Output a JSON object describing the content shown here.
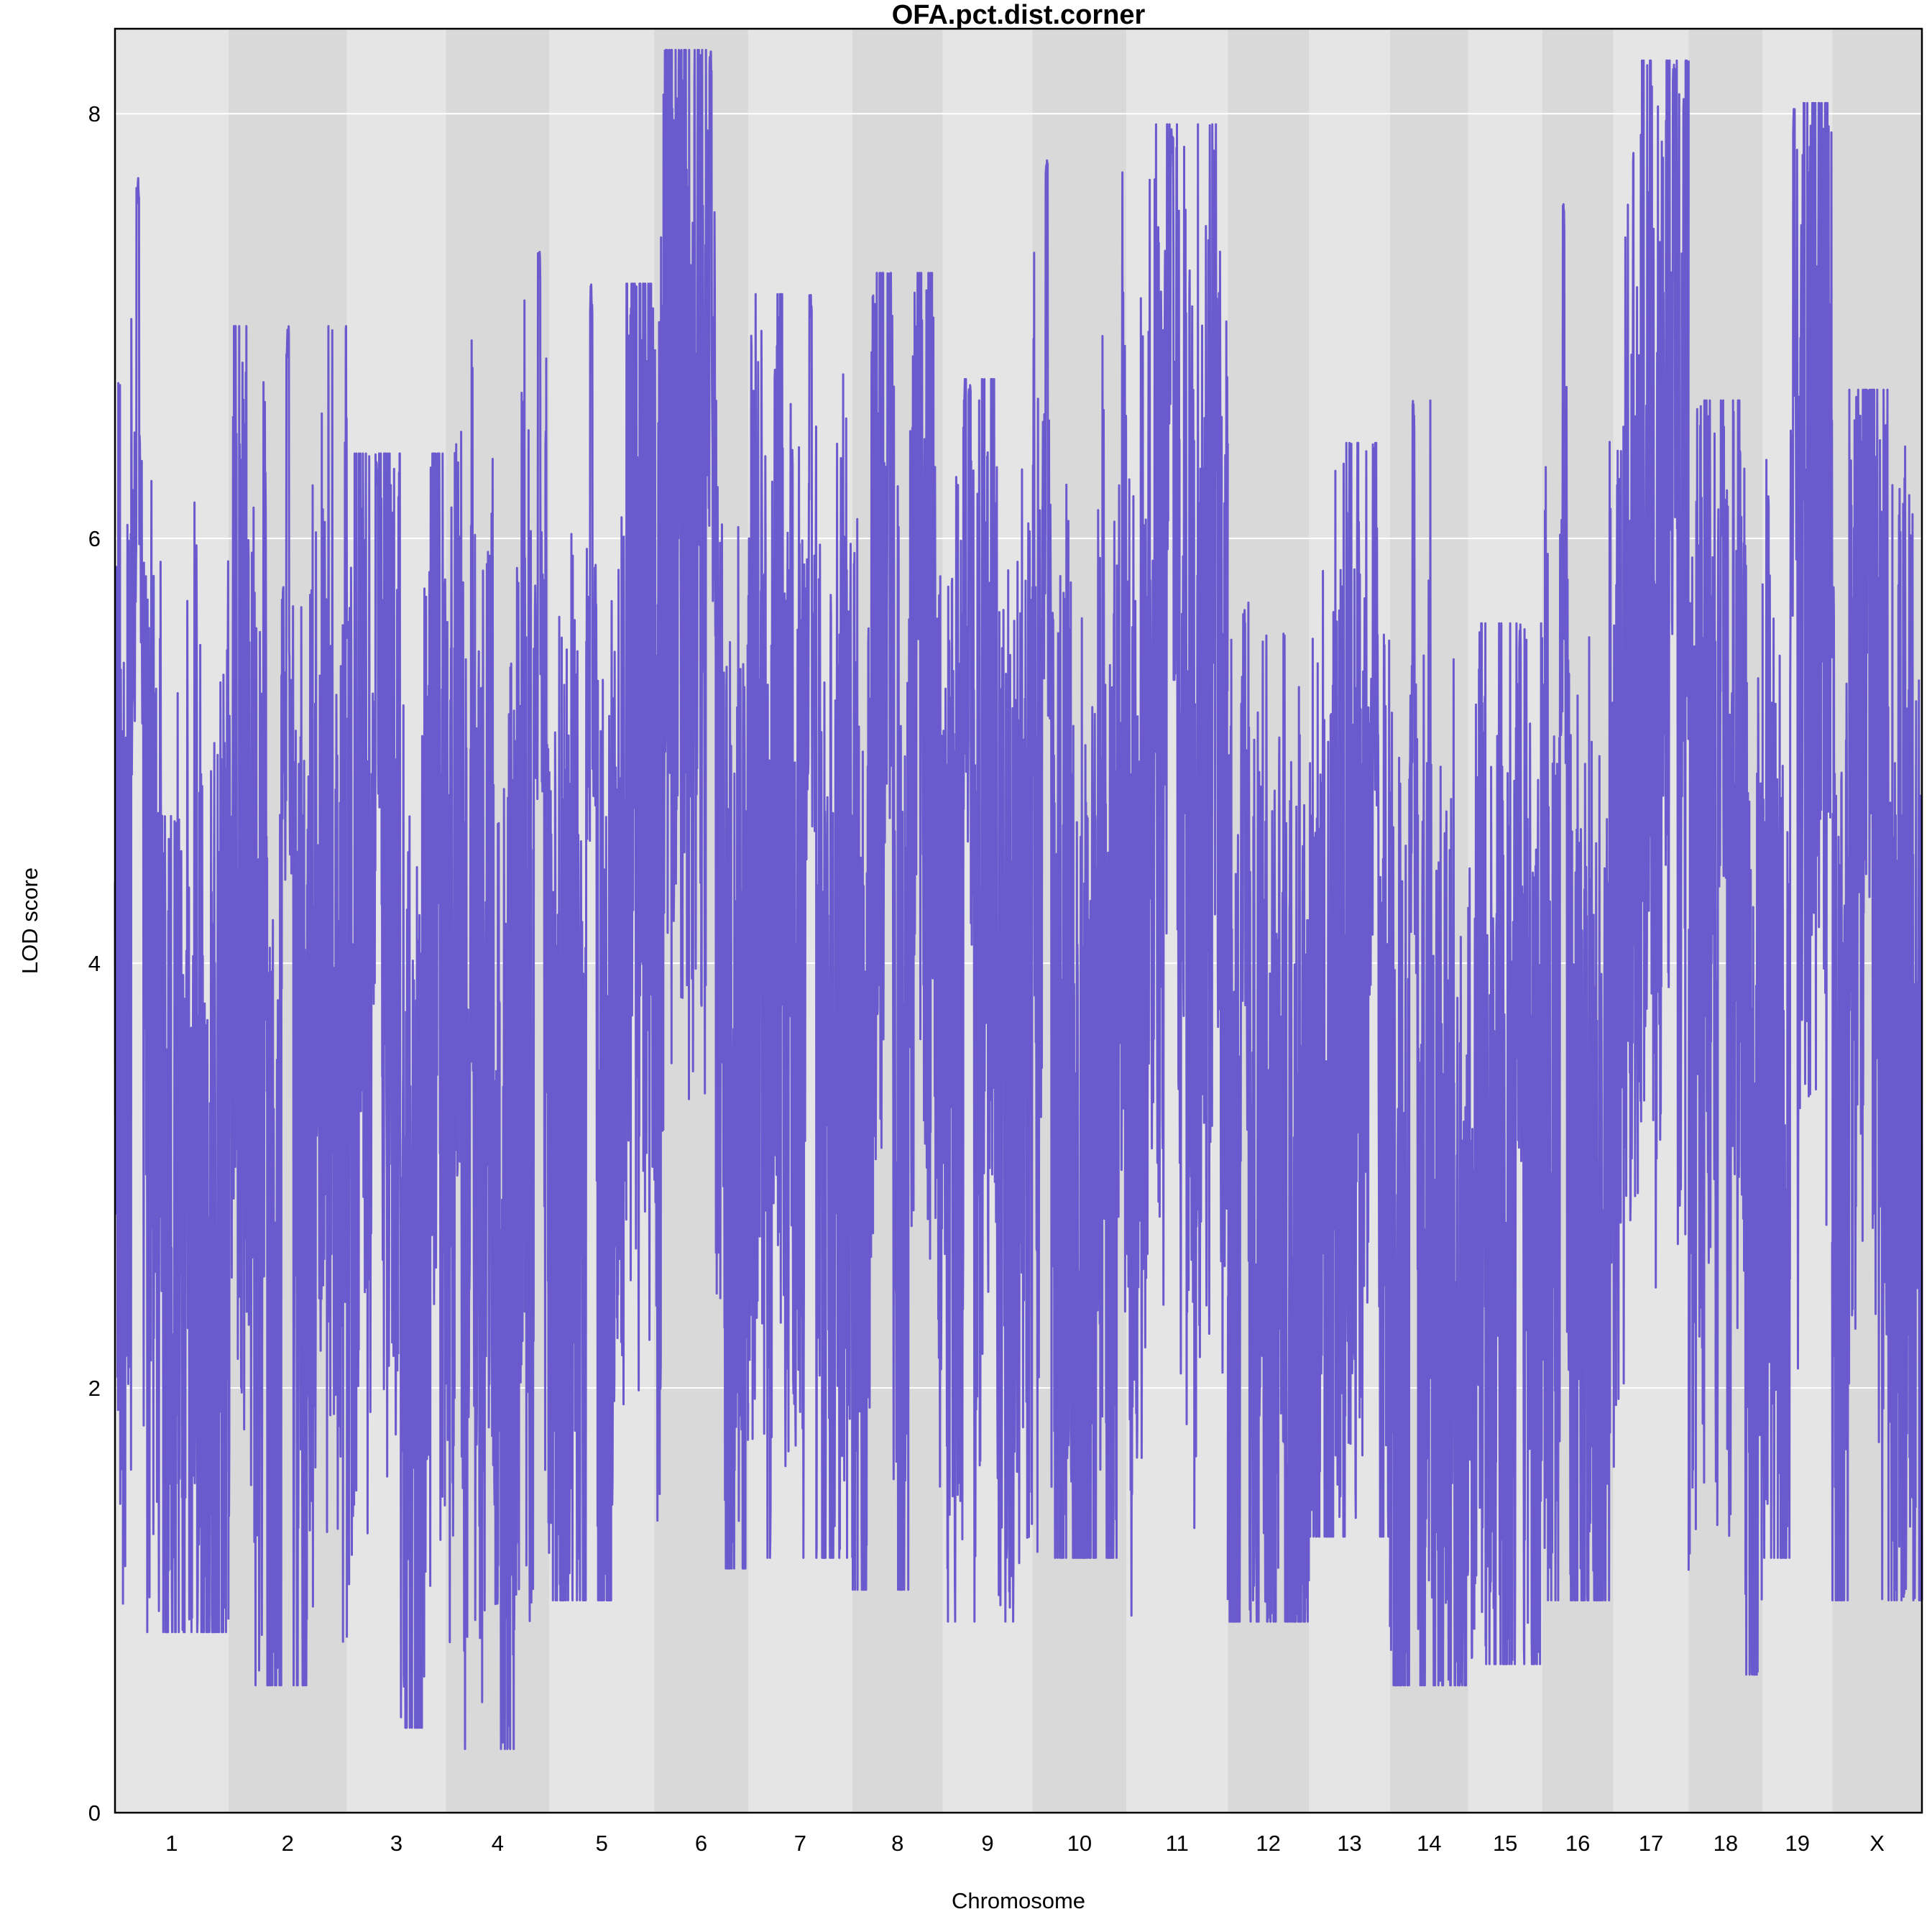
{
  "chart_data": {
    "type": "line",
    "title": "OFA.pct.dist.corner",
    "xlabel": "Chromosome",
    "ylabel": "LOD score",
    "ylim": [
      0,
      8.4
    ],
    "yticks": [
      0,
      2,
      4,
      6,
      8
    ],
    "grid": true,
    "line_color": "#6a5acd",
    "band_colors": [
      "#e5e5e5",
      "#d9d9d9"
    ],
    "chromosomes": [
      "1",
      "2",
      "3",
      "4",
      "5",
      "6",
      "7",
      "8",
      "9",
      "10",
      "11",
      "12",
      "13",
      "14",
      "15",
      "16",
      "17",
      "18",
      "19",
      "X"
    ],
    "chromosome_spans": [
      {
        "chr": "1",
        "start": 0,
        "end": 158
      },
      {
        "chr": "2",
        "start": 158,
        "end": 323
      },
      {
        "chr": "3",
        "start": 323,
        "end": 461
      },
      {
        "chr": "4",
        "start": 461,
        "end": 605
      },
      {
        "chr": "5",
        "start": 605,
        "end": 751
      },
      {
        "chr": "6",
        "start": 751,
        "end": 882
      },
      {
        "chr": "7",
        "start": 882,
        "end": 1027
      },
      {
        "chr": "8",
        "start": 1027,
        "end": 1153
      },
      {
        "chr": "9",
        "start": 1153,
        "end": 1278
      },
      {
        "chr": "10",
        "start": 1278,
        "end": 1409
      },
      {
        "chr": "11",
        "start": 1409,
        "end": 1550
      },
      {
        "chr": "12",
        "start": 1550,
        "end": 1663
      },
      {
        "chr": "13",
        "start": 1663,
        "end": 1776
      },
      {
        "chr": "14",
        "start": 1776,
        "end": 1885
      },
      {
        "chr": "15",
        "start": 1885,
        "end": 1988
      },
      {
        "chr": "16",
        "start": 1988,
        "end": 2087
      },
      {
        "chr": "17",
        "start": 2087,
        "end": 2192
      },
      {
        "chr": "18",
        "start": 2192,
        "end": 2295
      },
      {
        "chr": "19",
        "start": 2295,
        "end": 2392
      },
      {
        "chr": "X",
        "start": 2392,
        "end": 2517
      }
    ],
    "series": [
      {
        "values": [
          {
            "chr": "1",
            "max": 7.7,
            "min": 0.85,
            "peak_pos": 0.2
          },
          {
            "chr": "2",
            "max": 7.0,
            "min": 0.6,
            "peak_pos": 0.5
          },
          {
            "chr": "3",
            "max": 6.4,
            "min": 0.4,
            "peak_pos": 0.3
          },
          {
            "chr": "4",
            "max": 7.35,
            "min": 0.3,
            "peak_pos": 0.9
          },
          {
            "chr": "5",
            "max": 7.2,
            "min": 1.0,
            "peak_pos": 0.4
          },
          {
            "chr": "6",
            "max": 8.3,
            "min": 1.15,
            "peak_pos": 0.6
          },
          {
            "chr": "7",
            "max": 7.15,
            "min": 1.2,
            "peak_pos": 0.6
          },
          {
            "chr": "8",
            "max": 7.25,
            "min": 1.05,
            "peak_pos": 0.4
          },
          {
            "chr": "9",
            "max": 6.75,
            "min": 0.9,
            "peak_pos": 0.3
          },
          {
            "chr": "10",
            "max": 7.85,
            "min": 1.2,
            "peak_pos": 0.15
          },
          {
            "chr": "11",
            "max": 7.95,
            "min": 0.85,
            "peak_pos": 0.45
          },
          {
            "chr": "12",
            "max": 5.7,
            "min": 0.9,
            "peak_pos": 0.2
          },
          {
            "chr": "13",
            "max": 6.45,
            "min": 1.3,
            "peak_pos": 0.8
          },
          {
            "chr": "14",
            "max": 6.65,
            "min": 0.6,
            "peak_pos": 0.3
          },
          {
            "chr": "15",
            "max": 5.6,
            "min": 0.7,
            "peak_pos": 0.7
          },
          {
            "chr": "16",
            "max": 7.6,
            "min": 1.0,
            "peak_pos": 0.3
          },
          {
            "chr": "17",
            "max": 8.25,
            "min": 1.55,
            "peak_pos": 0.8
          },
          {
            "chr": "18",
            "max": 6.65,
            "min": 0.65,
            "peak_pos": 0.45
          },
          {
            "chr": "19",
            "max": 8.05,
            "min": 1.2,
            "peak_pos": 0.45
          },
          {
            "chr": "X",
            "max": 6.7,
            "min": 1.0,
            "peak_pos": 0.4
          }
        ]
      }
    ]
  }
}
